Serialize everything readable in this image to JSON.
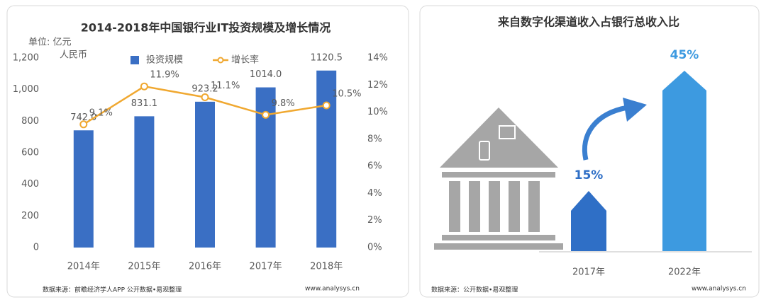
{
  "chart_data": [
    {
      "type": "bar-line",
      "title": "2014-2018年中国银行业IT投资规模及增长情况",
      "ylabel_lines": [
        "单位: 亿元",
        "人民币"
      ],
      "categories": [
        "2014年",
        "2015年",
        "2016年",
        "2017年",
        "2018年"
      ],
      "series": [
        {
          "name": "投资规模",
          "color": "#3a6fc4",
          "values": [
            742.0,
            831.1,
            923.2,
            1014.0,
            1120.5
          ],
          "value_labels": [
            "742.0",
            "831.1",
            "923.2",
            "1014.0",
            "1120.5"
          ]
        },
        {
          "name": "增长率",
          "color": "#f0a830",
          "axis": "y2",
          "values": [
            9.1,
            11.9,
            11.1,
            9.8,
            10.5
          ],
          "value_labels": [
            "9.1%",
            "11.9%",
            "11.1%",
            "9.8%",
            "10.5%"
          ]
        }
      ],
      "ylim": [
        0,
        1200
      ],
      "yticks": [
        0,
        200,
        400,
        600,
        800,
        {
          "value": 1000,
          "label": "1,000"
        },
        {
          "value": 1200,
          "label": "1,200"
        }
      ],
      "y2lim": [
        0,
        14
      ],
      "y2ticks": [
        {
          "value": 0,
          "label": "0%"
        },
        {
          "value": 2,
          "label": "2%"
        },
        {
          "value": 4,
          "label": "4%"
        },
        {
          "value": 6,
          "label": "6%"
        },
        {
          "value": 8,
          "label": "8%"
        },
        {
          "value": 10,
          "label": "10%"
        },
        {
          "value": 12,
          "label": "12%"
        },
        {
          "value": 14,
          "label": "14%"
        }
      ],
      "grid": false,
      "source": "数据来源：前瞻经济学人APP 公开数据•易观整理",
      "website": "www.analysys.cn"
    },
    {
      "type": "arrow-bar",
      "title": "来自数字化渠道收入占银行总收入比",
      "categories": [
        "2017年",
        "2022年"
      ],
      "values": [
        15,
        45
      ],
      "value_labels": [
        "15%",
        "45%"
      ],
      "colors": [
        "#2f6fc6",
        "#3d9ae0"
      ],
      "source": "数据来源：公开数据•易观整理",
      "website": "www.analysys.cn"
    }
  ]
}
